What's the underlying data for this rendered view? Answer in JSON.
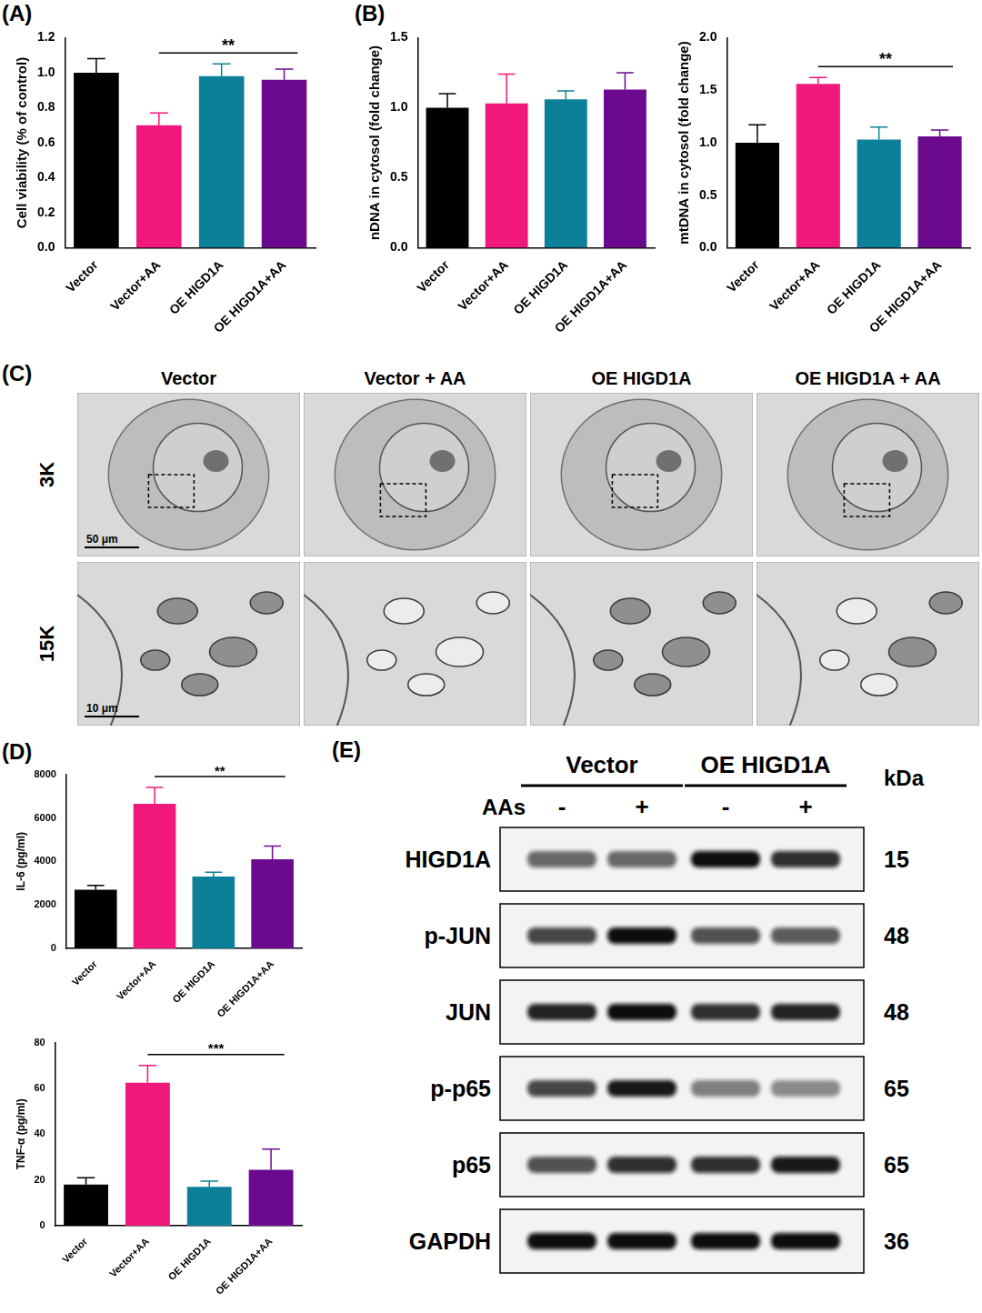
{
  "chart_data": [
    {
      "type": "bar",
      "panel": "(A)",
      "y_label": "Cell viability (% of control)",
      "categories": [
        "Vector",
        "Vector+AA",
        "OE HIGD1A",
        "OE HIGD1A+AA"
      ],
      "values": [
        1.0,
        0.7,
        0.98,
        0.96
      ],
      "errors": [
        0.08,
        0.07,
        0.07,
        0.06
      ],
      "colors": [
        "#000000",
        "#f0187a",
        "#0b8098",
        "#6c0a8f"
      ],
      "ylim": [
        0,
        1.2
      ],
      "yticks": [
        {
          "value": 0,
          "label": "0.0"
        },
        0.2,
        0.4,
        0.6,
        0.8,
        {
          "value": 1,
          "label": "1.0"
        },
        1.2
      ],
      "grid": false,
      "annotations": [
        {
          "from": "Vector+AA",
          "to": "OE HIGD1A+AA",
          "text": "**"
        }
      ]
    },
    {
      "type": "bar",
      "panel": "(B)",
      "y_label": "nDNA in cytosol (fold change)",
      "categories": [
        "Vector",
        "Vector+AA",
        "OE HIGD1A",
        "OE HIGD1A+AA"
      ],
      "values": [
        1.0,
        1.03,
        1.06,
        1.13
      ],
      "errors": [
        0.1,
        0.21,
        0.06,
        0.12
      ],
      "colors": [
        "#000000",
        "#f0187a",
        "#0b8098",
        "#6c0a8f"
      ],
      "ylim": [
        0,
        1.5
      ],
      "yticks": [
        {
          "value": 0,
          "label": "0.0"
        },
        0.5,
        {
          "value": 1,
          "label": "1.0"
        },
        1.5
      ],
      "grid": false
    },
    {
      "type": "bar",
      "y_label": "mtDNA in cytosol (fold change)",
      "categories": [
        "Vector",
        "Vector+AA",
        "OE HIGD1A",
        "OE HIGD1A+AA"
      ],
      "values": [
        1.0,
        1.56,
        1.03,
        1.06
      ],
      "errors": [
        0.17,
        0.06,
        0.12,
        0.06
      ],
      "colors": [
        "#000000",
        "#f0187a",
        "#0b8098",
        "#6c0a8f"
      ],
      "ylim": [
        0,
        2
      ],
      "yticks": [
        {
          "value": 0,
          "label": "0.0"
        },
        0.5,
        {
          "value": 1,
          "label": "1.0"
        },
        1.5,
        {
          "value": 2,
          "label": "2.0"
        }
      ],
      "grid": false,
      "annotations": [
        {
          "from": "Vector+AA",
          "to": "OE HIGD1A+AA",
          "text": "**"
        }
      ]
    },
    {
      "type": "bar",
      "panel": "(D)",
      "y_label": "IL-6 (pg/ml)",
      "categories": [
        "Vector",
        "Vector+AA",
        "OE HIGD1A",
        "OE HIGD1A+AA"
      ],
      "values": [
        2700,
        6650,
        3300,
        4100
      ],
      "errors": [
        200,
        750,
        200,
        600
      ],
      "colors": [
        "#000000",
        "#f0187a",
        "#0b8098",
        "#6c0a8f"
      ],
      "ylim": [
        0,
        8000
      ],
      "yticks": [
        0,
        2000,
        4000,
        6000,
        8000
      ],
      "grid": false,
      "annotations": [
        {
          "from": "Vector+AA",
          "to": "OE HIGD1A+AA",
          "text": "**"
        }
      ]
    },
    {
      "type": "bar",
      "y_label": "TNF-α (pg/ml)",
      "categories": [
        "Vector",
        "Vector+AA",
        "OE HIGD1A",
        "OE HIGD1A+AA"
      ],
      "values": [
        18,
        62.5,
        17,
        24.5
      ],
      "errors": [
        3,
        7.5,
        2.5,
        9
      ],
      "colors": [
        "#000000",
        "#f0187a",
        "#0b8098",
        "#6c0a8f"
      ],
      "ylim": [
        0,
        80
      ],
      "yticks": [
        0,
        20,
        40,
        60,
        80
      ],
      "grid": false,
      "annotations": [
        {
          "from": "Vector+AA",
          "to": "OE HIGD1A+AA",
          "text": "***"
        }
      ]
    }
  ],
  "tem": {
    "panel": "(C)",
    "columns": [
      "Vector",
      "Vector + AA",
      "OE HIGD1A",
      "OE HIGD1A + AA"
    ],
    "rows": [
      {
        "label": "3K",
        "scale_bar": "50 μm"
      },
      {
        "label": "15K",
        "scale_bar": "10 μm"
      }
    ]
  },
  "western_blot": {
    "panel": "(E)",
    "groups": [
      {
        "label": "Vector",
        "lanes": [
          "-",
          "+"
        ]
      },
      {
        "label": "OE HIGD1A",
        "lanes": [
          "-",
          "+"
        ]
      }
    ],
    "treatment_label": "AAs",
    "unit_label": "kDa",
    "rows": [
      {
        "protein": "HIGD1A",
        "kda": 15,
        "band_intensity": [
          0.6,
          0.6,
          1.0,
          0.85
        ]
      },
      {
        "protein": "p-JUN",
        "kda": 48,
        "band_intensity": [
          0.75,
          1.0,
          0.7,
          0.65
        ]
      },
      {
        "protein": "JUN",
        "kda": 48,
        "band_intensity": [
          0.9,
          1.0,
          0.85,
          0.9
        ]
      },
      {
        "protein": "p-p65",
        "kda": 65,
        "band_intensity": [
          0.75,
          0.95,
          0.5,
          0.45
        ]
      },
      {
        "protein": "p65",
        "kda": 65,
        "band_intensity": [
          0.7,
          0.85,
          0.85,
          0.95
        ]
      },
      {
        "protein": "GAPDH",
        "kda": 36,
        "band_intensity": [
          1.0,
          1.0,
          1.0,
          1.0
        ]
      }
    ]
  }
}
